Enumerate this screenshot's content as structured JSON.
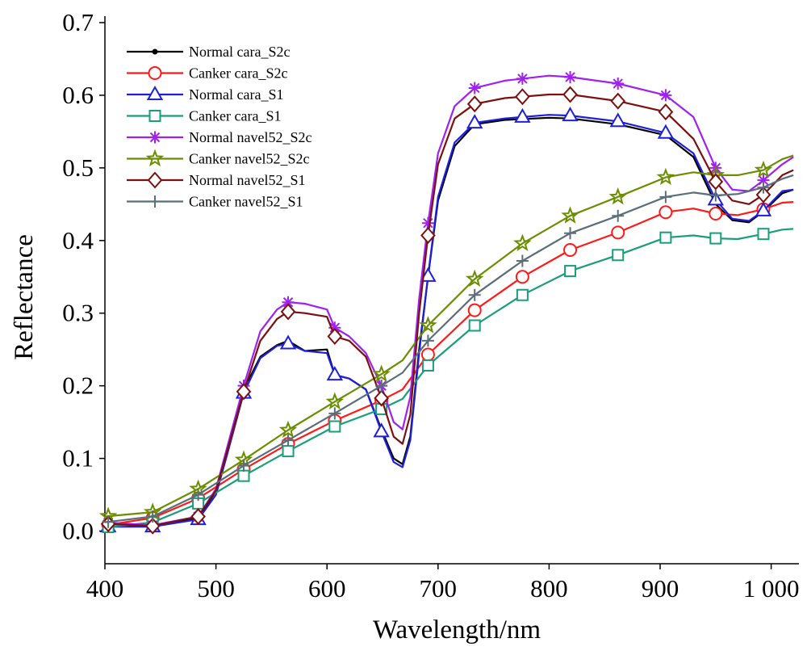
{
  "chart_data": {
    "type": "line",
    "title": "",
    "xlabel": "Wavelength/nm",
    "ylabel": "Reflectance",
    "xlim": [
      400,
      1025
    ],
    "ylim": [
      -0.045,
      0.7
    ],
    "xticks": [
      400,
      500,
      600,
      700,
      800,
      900,
      1000
    ],
    "xtick_labels": [
      "400",
      "500",
      "600",
      "700",
      "800",
      "900",
      "1 000"
    ],
    "yticks": [
      0.0,
      0.1,
      0.2,
      0.3,
      0.4,
      0.5,
      0.6,
      0.7
    ],
    "ytick_labels": [
      "0.0",
      "0.1",
      "0.2",
      "0.3",
      "0.4",
      "0.5",
      "0.6",
      "0.7"
    ],
    "grid": false,
    "legend_position": "top-left",
    "marker_x": [
      403,
      443,
      484,
      525,
      565,
      607,
      649,
      691,
      733,
      776,
      819,
      862,
      905,
      950,
      993
    ],
    "series": [
      {
        "name": "Normal cara_S2c",
        "color": "#000000",
        "marker": "dot",
        "x": [
          400,
          443,
          484,
          500,
          510,
          525,
          540,
          555,
          565,
          580,
          600,
          607,
          620,
          635,
          649,
          660,
          668,
          675,
          683,
          691,
          700,
          715,
          733,
          760,
          800,
          819,
          862,
          905,
          930,
          950,
          965,
          980,
          993,
          1010,
          1020
        ],
        "values": [
          0.01,
          0.008,
          0.018,
          0.055,
          0.11,
          0.195,
          0.24,
          0.256,
          0.262,
          0.248,
          0.25,
          0.215,
          0.21,
          0.195,
          0.14,
          0.1,
          0.092,
          0.13,
          0.25,
          0.35,
          0.455,
          0.53,
          0.56,
          0.566,
          0.569,
          0.568,
          0.56,
          0.545,
          0.515,
          0.45,
          0.428,
          0.425,
          0.44,
          0.465,
          0.47
        ]
      },
      {
        "name": "Canker cara_S2c",
        "color": "#ff1a1a",
        "marker": "circle",
        "x": [
          400,
          443,
          484,
          525,
          565,
          607,
          649,
          668,
          691,
          733,
          776,
          819,
          862,
          905,
          930,
          950,
          970,
          993,
          1010,
          1020
        ],
        "values": [
          0.008,
          0.018,
          0.045,
          0.085,
          0.12,
          0.152,
          0.18,
          0.195,
          0.243,
          0.304,
          0.35,
          0.387,
          0.411,
          0.439,
          0.444,
          0.437,
          0.435,
          0.443,
          0.452,
          0.453
        ]
      },
      {
        "name": "Normal cara_S1",
        "color": "#1f1fd9",
        "marker": "triangle",
        "x": [
          400,
          443,
          484,
          500,
          510,
          525,
          540,
          555,
          565,
          580,
          600,
          607,
          620,
          635,
          649,
          660,
          668,
          675,
          683,
          691,
          700,
          715,
          733,
          760,
          800,
          819,
          862,
          905,
          930,
          950,
          965,
          980,
          993,
          1010,
          1020
        ],
        "values": [
          0.006,
          0.006,
          0.016,
          0.05,
          0.105,
          0.19,
          0.238,
          0.255,
          0.258,
          0.248,
          0.245,
          0.215,
          0.21,
          0.195,
          0.137,
          0.095,
          0.088,
          0.125,
          0.245,
          0.351,
          0.46,
          0.535,
          0.562,
          0.568,
          0.573,
          0.572,
          0.564,
          0.548,
          0.52,
          0.456,
          0.43,
          0.427,
          0.441,
          0.468,
          0.47
        ]
      },
      {
        "name": "Canker cara_S1",
        "color": "#1a9e7a",
        "marker": "square",
        "x": [
          400,
          443,
          484,
          525,
          565,
          607,
          649,
          668,
          691,
          733,
          776,
          819,
          862,
          905,
          930,
          950,
          970,
          993,
          1010,
          1020
        ],
        "values": [
          0.005,
          0.012,
          0.038,
          0.076,
          0.11,
          0.144,
          0.168,
          0.182,
          0.228,
          0.283,
          0.325,
          0.358,
          0.38,
          0.404,
          0.407,
          0.403,
          0.402,
          0.409,
          0.415,
          0.416
        ]
      },
      {
        "name": "Normal navel52_S2c",
        "color": "#a020f0",
        "marker": "asterisk",
        "x": [
          400,
          443,
          484,
          500,
          510,
          525,
          540,
          555,
          565,
          580,
          600,
          607,
          620,
          635,
          649,
          660,
          668,
          675,
          683,
          691,
          700,
          715,
          733,
          760,
          800,
          819,
          862,
          905,
          930,
          950,
          965,
          980,
          993,
          1010,
          1020
        ],
        "values": [
          0.012,
          0.008,
          0.02,
          0.058,
          0.115,
          0.2,
          0.275,
          0.305,
          0.315,
          0.313,
          0.305,
          0.28,
          0.268,
          0.245,
          0.2,
          0.15,
          0.14,
          0.185,
          0.32,
          0.424,
          0.52,
          0.585,
          0.61,
          0.62,
          0.627,
          0.625,
          0.616,
          0.6,
          0.57,
          0.5,
          0.47,
          0.468,
          0.483,
          0.505,
          0.515
        ]
      },
      {
        "name": "Canker navel52_S2c",
        "color": "#6b8e00",
        "marker": "star",
        "x": [
          400,
          443,
          484,
          525,
          565,
          607,
          649,
          668,
          691,
          733,
          776,
          819,
          862,
          905,
          930,
          950,
          970,
          993,
          1010,
          1020
        ],
        "values": [
          0.02,
          0.026,
          0.058,
          0.098,
          0.139,
          0.178,
          0.216,
          0.235,
          0.283,
          0.347,
          0.396,
          0.434,
          0.46,
          0.487,
          0.494,
          0.49,
          0.49,
          0.497,
          0.512,
          0.517
        ]
      },
      {
        "name": "Normal navel52_S1",
        "color": "#7b1010",
        "marker": "diamond",
        "x": [
          400,
          443,
          484,
          500,
          510,
          525,
          540,
          555,
          565,
          580,
          600,
          607,
          620,
          635,
          649,
          660,
          668,
          675,
          683,
          691,
          700,
          715,
          733,
          760,
          800,
          819,
          862,
          905,
          930,
          950,
          965,
          980,
          993,
          1010,
          1020
        ],
        "values": [
          0.01,
          0.007,
          0.02,
          0.056,
          0.11,
          0.192,
          0.262,
          0.292,
          0.302,
          0.3,
          0.295,
          0.268,
          0.262,
          0.24,
          0.183,
          0.13,
          0.12,
          0.16,
          0.3,
          0.407,
          0.505,
          0.568,
          0.588,
          0.596,
          0.601,
          0.601,
          0.592,
          0.577,
          0.54,
          0.481,
          0.455,
          0.45,
          0.463,
          0.49,
          0.497
        ]
      },
      {
        "name": "Canker navel52_S1",
        "color": "#5a6e7a",
        "marker": "plus",
        "x": [
          400,
          443,
          484,
          525,
          565,
          607,
          649,
          668,
          691,
          733,
          776,
          819,
          862,
          905,
          930,
          950,
          970,
          993,
          1010,
          1020
        ],
        "values": [
          0.012,
          0.02,
          0.05,
          0.09,
          0.125,
          0.162,
          0.2,
          0.218,
          0.262,
          0.325,
          0.372,
          0.41,
          0.434,
          0.46,
          0.466,
          0.462,
          0.464,
          0.473,
          0.485,
          0.49
        ]
      }
    ]
  }
}
